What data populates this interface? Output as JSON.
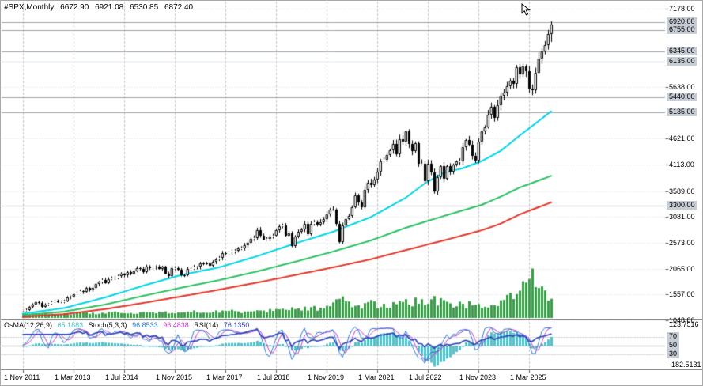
{
  "header": {
    "symbol_period": "#SPX,Monthly",
    "open": "6672.90",
    "high": "6921.08",
    "low": "6530.85",
    "close": "6872.40"
  },
  "colors": {
    "ma_fast": "#00d4e6",
    "ma_mid": "#2abf63",
    "ma_slow": "#e3362a",
    "volume": "#379e46",
    "osma_histogram": "#4ec2cb",
    "stoch_main": "#2e7bd6",
    "stoch_signal": "#bf3fbf",
    "rsi": "#2c44bd",
    "grid_vertical": "#c9c9c9",
    "grid_horizontal": "#dcdcdc",
    "level_line": "#9fa4ab",
    "badge_bg": "#c7cdd5",
    "candle_up_fill": "#ffffff",
    "candle_down_fill": "#000000",
    "candle_border": "#000000",
    "text": "#000000"
  },
  "chart_data": {
    "type": "candlestick",
    "symbol": "#SPX",
    "timeframe": "Monthly",
    "title": "#SPX,Monthly",
    "start_month": "2011-11",
    "last_candle": {
      "open": 6672.9,
      "high": 6921.08,
      "low": 6530.85,
      "close": 6872.4
    },
    "monthly_closes": [
      1247,
      1258,
      1312,
      1366,
      1408,
      1398,
      1310,
      1362,
      1379,
      1407,
      1441,
      1412,
      1416,
      1426,
      1498,
      1515,
      1569,
      1598,
      1631,
      1606,
      1686,
      1633,
      1682,
      1757,
      1806,
      1848,
      1783,
      1859,
      1872,
      1884,
      1924,
      1960,
      1931,
      2003,
      1972,
      2018,
      2068,
      2059,
      1995,
      2105,
      2068,
      2086,
      2107,
      2063,
      2104,
      1972,
      1920,
      2079,
      2080,
      2044,
      1940,
      1932,
      2060,
      2065,
      2097,
      2099,
      2174,
      2171,
      2168,
      2126,
      2199,
      2239,
      2279,
      2364,
      2363,
      2384,
      2412,
      2423,
      2470,
      2472,
      2519,
      2575,
      2648,
      2674,
      2824,
      2714,
      2641,
      2648,
      2705,
      2718,
      2816,
      2902,
      2914,
      2712,
      2760,
      2507,
      2704,
      2784,
      2834,
      2946,
      2752,
      2942,
      2980,
      2926,
      2977,
      3038,
      3141,
      3231,
      3226,
      2954,
      2585,
      2912,
      3044,
      3100,
      3271,
      3500,
      3363,
      3270,
      3622,
      3756,
      3714,
      3811,
      3973,
      4181,
      4204,
      4298,
      4395,
      4523,
      4308,
      4605,
      4567,
      4766,
      4516,
      4374,
      4530,
      4132,
      4132,
      3785,
      4130,
      3955,
      3586,
      3872,
      4080,
      3840,
      4077,
      3970,
      4109,
      4169,
      4180,
      4450,
      4589,
      4508,
      4288,
      4194,
      4568,
      4770,
      4846,
      5096,
      5254,
      5036,
      5278,
      5460,
      5522,
      5648,
      5762,
      5705,
      6032,
      5882,
      6041,
      5955,
      5612,
      5569,
      5912,
      6205,
      6339,
      6460,
      6673,
      6872.4
    ],
    "x_ticks": [
      {
        "month_index": 0,
        "label": "1 Nov 2011"
      },
      {
        "month_index": 16,
        "label": "1 Mar 2013"
      },
      {
        "month_index": 32,
        "label": "1 Jul 2014"
      },
      {
        "month_index": 48,
        "label": "1 Nov 2015"
      },
      {
        "month_index": 64,
        "label": "1 Mar 2017"
      },
      {
        "month_index": 80,
        "label": "1 Jul 2018"
      },
      {
        "month_index": 96,
        "label": "1 Nov 2019"
      },
      {
        "month_index": 112,
        "label": "1 Mar 2021"
      },
      {
        "month_index": 128,
        "label": "1 Jul 2022"
      },
      {
        "month_index": 144,
        "label": "1 Nov 2023"
      },
      {
        "month_index": 160,
        "label": "1 Mar 2025"
      }
    ],
    "y_axis": {
      "top_price": 7178,
      "bottom_price": 1048.8,
      "ticks": [
        {
          "value": 7178,
          "label": "7178.00"
        },
        {
          "value": 5638,
          "label": "5638.00"
        },
        {
          "value": 4621,
          "label": "4621.00"
        },
        {
          "value": 4113,
          "label": "4113.00"
        },
        {
          "value": 3589,
          "label": "3589.00"
        },
        {
          "value": 3081,
          "label": "3081.00"
        },
        {
          "value": 2573,
          "label": "2573.00"
        },
        {
          "value": 2065,
          "label": "2065.00"
        },
        {
          "value": 1557,
          "label": "1557.00"
        },
        {
          "value": 1048.8,
          "label": "1048.80"
        }
      ]
    },
    "horizontal_levels": [
      {
        "value": 6920,
        "label": "6920.00"
      },
      {
        "value": 6755,
        "label": "6755.00"
      },
      {
        "value": 6345,
        "label": "6345.00"
      },
      {
        "value": 6135,
        "label": "6135.00"
      },
      {
        "value": 5440,
        "label": "5440.00"
      },
      {
        "value": 5135,
        "label": "5135.00"
      },
      {
        "value": 3300,
        "label": "3300.00"
      }
    ],
    "moving_averages": [
      {
        "name": "fast",
        "color_key": "ma_fast",
        "samples": [
          [
            0,
            1180
          ],
          [
            13,
            1290
          ],
          [
            26,
            1500
          ],
          [
            38,
            1730
          ],
          [
            50,
            1940
          ],
          [
            62,
            2090
          ],
          [
            74,
            2310
          ],
          [
            86,
            2560
          ],
          [
            98,
            2790
          ],
          [
            110,
            3080
          ],
          [
            121,
            3460
          ],
          [
            127,
            3740
          ],
          [
            133,
            3950
          ],
          [
            139,
            4040
          ],
          [
            145,
            4180
          ],
          [
            151,
            4380
          ],
          [
            157,
            4680
          ],
          [
            162,
            4920
          ],
          [
            167,
            5160
          ]
        ]
      },
      {
        "name": "mid",
        "color_key": "ma_mid",
        "samples": [
          [
            0,
            1150
          ],
          [
            13,
            1220
          ],
          [
            26,
            1360
          ],
          [
            38,
            1530
          ],
          [
            50,
            1690
          ],
          [
            62,
            1840
          ],
          [
            74,
            2010
          ],
          [
            86,
            2200
          ],
          [
            98,
            2400
          ],
          [
            110,
            2620
          ],
          [
            121,
            2870
          ],
          [
            133,
            3100
          ],
          [
            145,
            3320
          ],
          [
            151,
            3480
          ],
          [
            157,
            3660
          ],
          [
            167,
            3890
          ]
        ]
      },
      {
        "name": "slow",
        "color_key": "ma_slow",
        "samples": [
          [
            0,
            1120
          ],
          [
            13,
            1170
          ],
          [
            26,
            1270
          ],
          [
            38,
            1390
          ],
          [
            50,
            1520
          ],
          [
            62,
            1650
          ],
          [
            74,
            1790
          ],
          [
            86,
            1940
          ],
          [
            98,
            2090
          ],
          [
            110,
            2250
          ],
          [
            121,
            2430
          ],
          [
            133,
            2620
          ],
          [
            145,
            2820
          ],
          [
            151,
            2950
          ],
          [
            157,
            3130
          ],
          [
            167,
            3370
          ]
        ]
      }
    ],
    "volume_profile": [
      [
        0,
        0.1
      ],
      [
        12,
        0.11
      ],
      [
        24,
        0.12
      ],
      [
        36,
        0.13
      ],
      [
        48,
        0.14
      ],
      [
        60,
        0.15
      ],
      [
        72,
        0.17
      ],
      [
        84,
        0.2
      ],
      [
        96,
        0.26
      ],
      [
        100,
        0.46
      ],
      [
        104,
        0.3
      ],
      [
        110,
        0.34
      ],
      [
        116,
        0.3
      ],
      [
        121,
        0.36
      ],
      [
        128,
        0.46
      ],
      [
        133,
        0.38
      ],
      [
        139,
        0.33
      ],
      [
        145,
        0.3
      ],
      [
        151,
        0.4
      ],
      [
        156,
        0.58
      ],
      [
        159,
        0.8
      ],
      [
        161,
        1.0
      ],
      [
        163,
        0.85
      ],
      [
        165,
        0.62
      ],
      [
        167,
        0.45
      ]
    ],
    "indicator_pane": {
      "label": {
        "osma_name": "OsMA(12,26,9)",
        "osma_value": "65.1883",
        "stoch_name": "Stoch(5,3,3)",
        "stoch_main": "96.8533",
        "stoch_signal": "96.4838",
        "rsi_name": "RSI(14)",
        "rsi_value": "76.1350"
      },
      "osma": {
        "fast": 12,
        "slow": 26,
        "signal": 9,
        "current": 65.1883
      },
      "stochastic": {
        "k": 5,
        "d": 3,
        "slowing": 3,
        "main": 96.8533,
        "signal": 96.4838
      },
      "rsi": {
        "period": 14,
        "current": 76.135
      },
      "scale_top": {
        "value": 123.7516,
        "label": "123.7516"
      },
      "scale_bottom": {
        "value": -182.5131,
        "label": "-182.5131"
      },
      "levels": [
        {
          "value": 70,
          "label": "70"
        },
        {
          "value": 50,
          "label": "50"
        },
        {
          "value": 30,
          "label": "30"
        }
      ]
    }
  }
}
